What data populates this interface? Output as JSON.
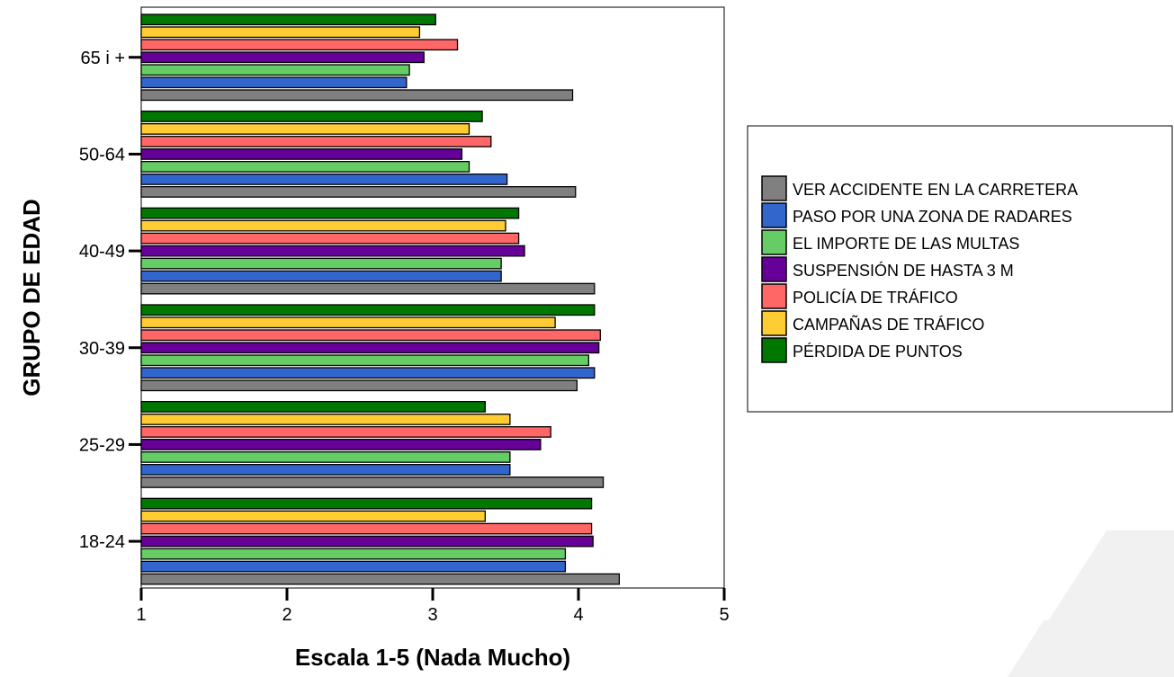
{
  "chart_data": {
    "type": "bar",
    "orientation": "horizontal",
    "title": "",
    "xlabel": "Escala 1-5 (Nada Mucho)",
    "ylabel": "GRUPO DE EDAD",
    "xlim": [
      1,
      5
    ],
    "xticks": [
      1,
      2,
      3,
      4,
      5
    ],
    "grid": false,
    "legend_position": "right",
    "categories": [
      "18-24",
      "25-29",
      "30-39",
      "40-49",
      "50-64",
      "65 i +"
    ],
    "series": [
      {
        "name": "VER ACCIDENTE EN LA CARRETERA",
        "color": "#808080",
        "values": [
          4.28,
          4.17,
          3.99,
          4.11,
          3.98,
          3.96
        ]
      },
      {
        "name": "PASO POR UNA ZONA DE RADARES",
        "color": "#3366cc",
        "values": [
          3.91,
          3.53,
          4.11,
          3.47,
          3.51,
          2.82
        ]
      },
      {
        "name": "EL IMPORTE DE LAS MULTAS",
        "color": "#66cc66",
        "values": [
          3.91,
          3.53,
          4.07,
          3.47,
          3.25,
          2.84
        ]
      },
      {
        "name": "SUSPENSIÓN DE HASTA 3 M",
        "color": "#660099",
        "values": [
          4.1,
          3.74,
          4.14,
          3.63,
          3.2,
          2.94
        ]
      },
      {
        "name": "POLICÍA DE TRÁFICO",
        "color": "#ff6666",
        "values": [
          4.09,
          3.81,
          4.15,
          3.59,
          3.4,
          3.17
        ]
      },
      {
        "name": "CAMPAÑAS DE TRÁFICO",
        "color": "#ffcc33",
        "values": [
          3.36,
          3.53,
          3.84,
          3.5,
          3.25,
          2.91
        ]
      },
      {
        "name": "PÉRDIDA DE PUNTOS",
        "color": "#007700",
        "values": [
          4.09,
          3.36,
          4.11,
          3.59,
          3.34,
          3.02
        ]
      }
    ]
  }
}
